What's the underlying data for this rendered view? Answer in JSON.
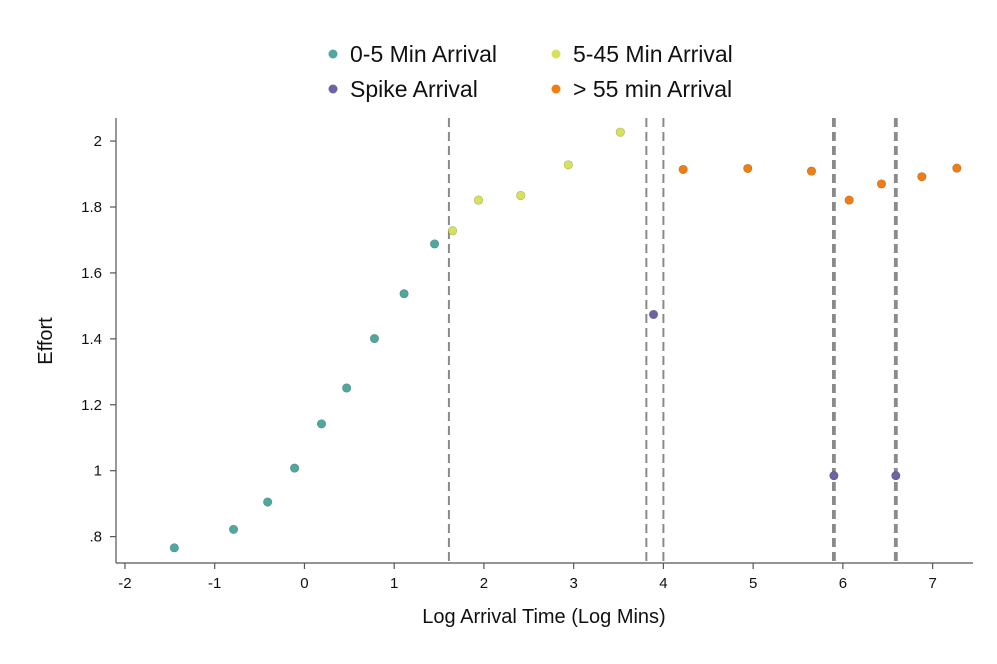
{
  "chart_data": {
    "type": "scatter",
    "xlabel": "Log Arrival Time (Log Mins)",
    "ylabel": "Effort",
    "xlim": [
      -2.1,
      7.45
    ],
    "ylim": [
      0.72,
      2.07
    ],
    "x_ticks": [
      {
        "value": -2,
        "label": "-2"
      },
      {
        "value": -1,
        "label": "-1"
      },
      {
        "value": 0,
        "label": "0"
      },
      {
        "value": 1,
        "label": "1"
      },
      {
        "value": 2,
        "label": "2"
      },
      {
        "value": 3,
        "label": "3"
      },
      {
        "value": 4,
        "label": "4"
      },
      {
        "value": 5,
        "label": "5"
      },
      {
        "value": 6,
        "label": "6"
      },
      {
        "value": 7,
        "label": "7"
      }
    ],
    "y_ticks": [
      {
        "value": 0.8,
        "label": ".8"
      },
      {
        "value": 1.0,
        "label": "1"
      },
      {
        "value": 1.2,
        "label": "1.2"
      },
      {
        "value": 1.4,
        "label": "1.4"
      },
      {
        "value": 1.6,
        "label": "1.6"
      },
      {
        "value": 1.8,
        "label": "1.8"
      },
      {
        "value": 2.0,
        "label": "2"
      }
    ],
    "vertical_lines": [
      1.61,
      3.81,
      4.0,
      5.89,
      5.91,
      6.58,
      6.6
    ],
    "grid": false,
    "legend_position": "top",
    "series": [
      {
        "name": "0-5 Min Arrival",
        "color": "#4fa7a0",
        "points": [
          {
            "x": -1.45,
            "y": 0.766
          },
          {
            "x": -0.79,
            "y": 0.822
          },
          {
            "x": -0.41,
            "y": 0.905
          },
          {
            "x": -0.11,
            "y": 1.008
          },
          {
            "x": 0.19,
            "y": 1.142
          },
          {
            "x": 0.47,
            "y": 1.251
          },
          {
            "x": 0.78,
            "y": 1.401
          },
          {
            "x": 1.11,
            "y": 1.537
          },
          {
            "x": 1.45,
            "y": 1.688
          }
        ]
      },
      {
        "name": "5-45 Min Arrival",
        "color": "#d7e25a",
        "points": [
          {
            "x": 1.65,
            "y": 1.728
          },
          {
            "x": 1.94,
            "y": 1.821
          },
          {
            "x": 2.41,
            "y": 1.835
          },
          {
            "x": 2.94,
            "y": 1.928
          },
          {
            "x": 3.52,
            "y": 2.027
          }
        ]
      },
      {
        "name": "Spike Arrival",
        "color": "#6b64a4",
        "points": [
          {
            "x": 3.89,
            "y": 1.474
          },
          {
            "x": 5.9,
            "y": 0.985
          },
          {
            "x": 6.59,
            "y": 0.985
          }
        ]
      },
      {
        "name": "> 55 min Arrival",
        "color": "#f07d14",
        "points": [
          {
            "x": 4.22,
            "y": 1.914
          },
          {
            "x": 4.94,
            "y": 1.917
          },
          {
            "x": 5.65,
            "y": 1.909
          },
          {
            "x": 6.07,
            "y": 1.821
          },
          {
            "x": 6.43,
            "y": 1.87
          },
          {
            "x": 6.88,
            "y": 1.892
          },
          {
            "x": 7.27,
            "y": 1.918
          }
        ]
      }
    ]
  }
}
